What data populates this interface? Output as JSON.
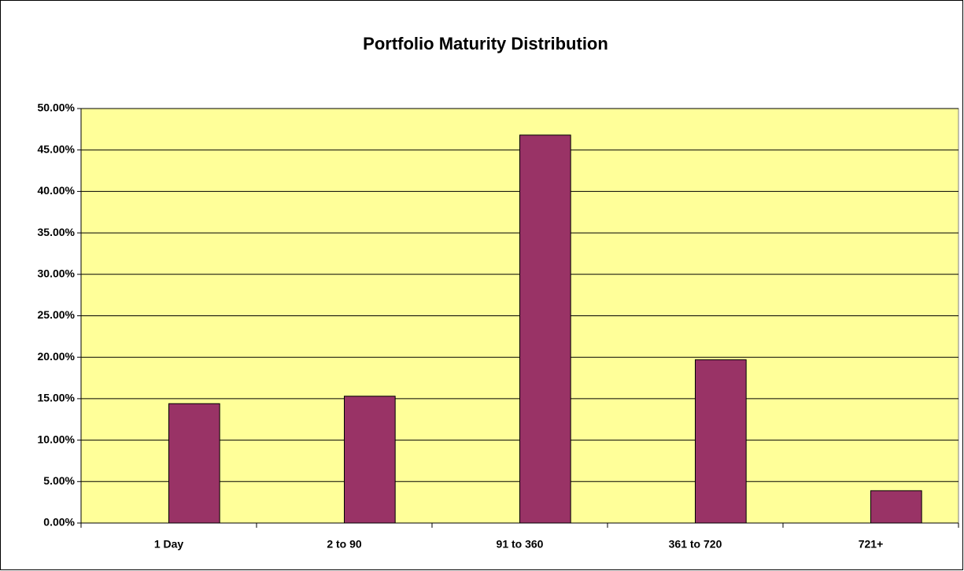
{
  "chart_data": {
    "type": "bar",
    "title": "Portfolio Maturity Distribution",
    "categories": [
      "1 Day",
      "2 to 90",
      "91 to 360",
      "361 to 720",
      "721+"
    ],
    "values": [
      14.4,
      15.3,
      46.8,
      19.7,
      3.9
    ],
    "color": "#993366",
    "ylim": [
      0,
      50
    ],
    "yticks": [
      {
        "value": 0,
        "label": "0.00%"
      },
      {
        "value": 5,
        "label": "5.00%"
      },
      {
        "value": 10,
        "label": "10.00%"
      },
      {
        "value": 15,
        "label": "15.00%"
      },
      {
        "value": 20,
        "label": "20.00%"
      },
      {
        "value": 25,
        "label": "25.00%"
      },
      {
        "value": 30,
        "label": "30.00%"
      },
      {
        "value": 35,
        "label": "35.00%"
      },
      {
        "value": 40,
        "label": "40.00%"
      },
      {
        "value": 45,
        "label": "45.00%"
      },
      {
        "value": 50,
        "label": "50.00%"
      }
    ],
    "grid": true
  }
}
